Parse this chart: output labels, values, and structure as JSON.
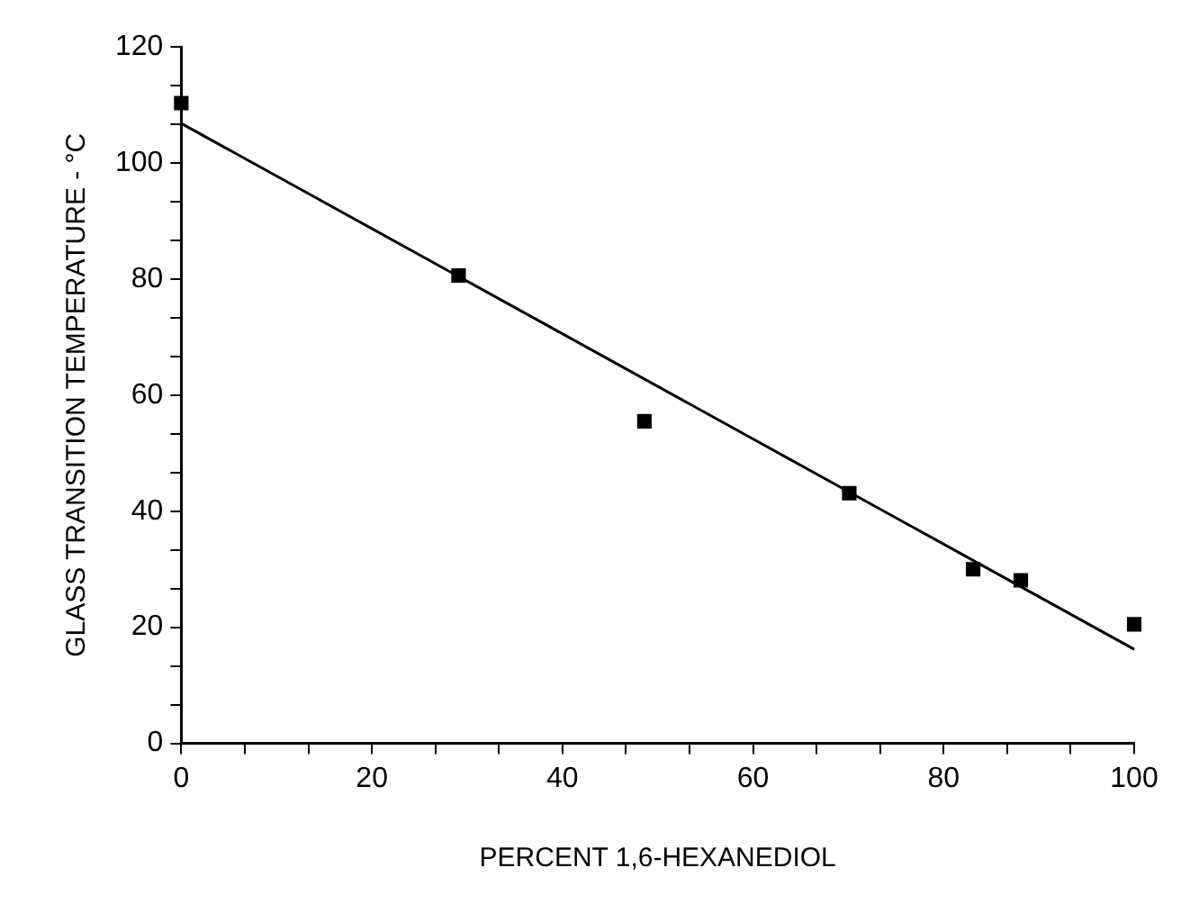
{
  "chart_data": {
    "type": "scatter",
    "xlabel": "PERCENT 1,6-HEXANEDIOL",
    "ylabel": "GLASS TRANSITION TEMPERATURE - °C",
    "xlim": [
      0,
      100
    ],
    "ylim": [
      0,
      120
    ],
    "xticks": [
      0,
      {
        "value": 6.67,
        "label": null
      },
      {
        "value": 13.33,
        "label": null
      },
      20,
      {
        "value": 26.67,
        "label": null
      },
      {
        "value": 33.33,
        "label": null
      },
      40,
      {
        "value": 46.67,
        "label": null
      },
      {
        "value": 53.33,
        "label": null
      },
      60,
      {
        "value": 66.67,
        "label": null
      },
      {
        "value": 73.33,
        "label": null
      },
      80,
      {
        "value": 86.67,
        "label": null
      },
      {
        "value": 93.33,
        "label": null
      },
      100
    ],
    "yticks": [
      0,
      {
        "value": 6.67,
        "label": null
      },
      {
        "value": 13.33,
        "label": null
      },
      20,
      {
        "value": 26.67,
        "label": null
      },
      {
        "value": 33.33,
        "label": null
      },
      40,
      {
        "value": 46.67,
        "label": null
      },
      {
        "value": 53.33,
        "label": null
      },
      60,
      {
        "value": 66.67,
        "label": null
      },
      {
        "value": 73.33,
        "label": null
      },
      80,
      {
        "value": 86.67,
        "label": null
      },
      {
        "value": 93.33,
        "label": null
      },
      100,
      {
        "value": 106.67,
        "label": null
      },
      {
        "value": 113.33,
        "label": null
      },
      120
    ],
    "grid": false,
    "legend": false,
    "marker": "square",
    "series": [
      {
        "type": "scatter",
        "color": "#000000",
        "x": [
          0,
          29.1,
          48.6,
          70.1,
          83.1,
          88.1,
          100
        ],
        "values": [
          110.3,
          80.6,
          55.5,
          43.1,
          30.0,
          28.1,
          20.5
        ]
      },
      {
        "type": "line",
        "color": "#000000",
        "marker": "none",
        "line_style": "solid",
        "x": [
          0,
          100
        ],
        "values": [
          106.8,
          16.2
        ]
      }
    ]
  }
}
